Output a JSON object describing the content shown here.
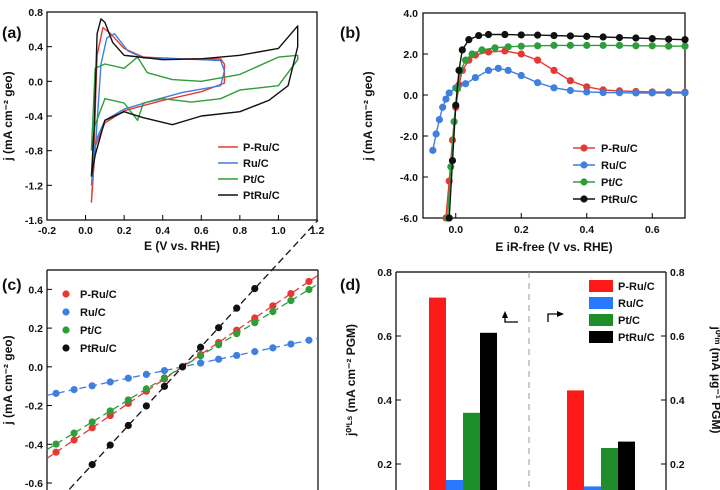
{
  "chart_data": [
    {
      "panel": "(a)",
      "type": "line",
      "xlabel": "E (V vs. RHE)",
      "ylabel": "j (mA cm⁻² geo)",
      "xlim": [
        -0.2,
        1.2
      ],
      "ylim": [
        -1.6,
        0.8
      ],
      "xticks": [
        "-0.2",
        "0.0",
        "0.2",
        "0.4",
        "0.6",
        "0.8",
        "1.0",
        "1.2"
      ],
      "yticks": [
        "-1.6",
        "-1.2",
        "-0.8",
        "-0.4",
        "0.0",
        "0.4",
        "0.8"
      ],
      "legend_position": "lower-right",
      "series": [
        {
          "name": "P-Ru/C",
          "color": "#e53935",
          "points": [
            [
              0.03,
              -1.4
            ],
            [
              0.04,
              -1.0
            ],
            [
              0.06,
              0.3
            ],
            [
              0.09,
              0.62
            ],
            [
              0.13,
              0.55
            ],
            [
              0.2,
              0.38
            ],
            [
              0.3,
              0.28
            ],
            [
              0.5,
              0.26
            ],
            [
              0.7,
              0.26
            ],
            [
              0.72,
              0.2
            ],
            [
              0.72,
              -0.02
            ],
            [
              0.6,
              -0.12
            ],
            [
              0.4,
              -0.22
            ],
            [
              0.3,
              -0.28
            ],
            [
              0.2,
              -0.34
            ],
            [
              0.1,
              -0.48
            ],
            [
              0.05,
              -0.75
            ],
            [
              0.03,
              -1.4
            ]
          ]
        },
        {
          "name": "Ru/C",
          "color": "#3f7fe0",
          "points": [
            [
              0.03,
              -1.2
            ],
            [
              0.05,
              -0.8
            ],
            [
              0.08,
              0.2
            ],
            [
              0.11,
              0.5
            ],
            [
              0.15,
              0.55
            ],
            [
              0.22,
              0.35
            ],
            [
              0.3,
              0.27
            ],
            [
              0.5,
              0.26
            ],
            [
              0.7,
              0.24
            ],
            [
              0.72,
              0.12
            ],
            [
              0.7,
              -0.05
            ],
            [
              0.5,
              -0.13
            ],
            [
              0.35,
              -0.22
            ],
            [
              0.2,
              -0.32
            ],
            [
              0.1,
              -0.45
            ],
            [
              0.05,
              -0.7
            ],
            [
              0.03,
              -1.2
            ]
          ]
        },
        {
          "name": "Pt/C",
          "color": "#2e9e3a",
          "points": [
            [
              0.03,
              -0.8
            ],
            [
              0.05,
              0.15
            ],
            [
              0.1,
              0.2
            ],
            [
              0.2,
              0.15
            ],
            [
              0.27,
              0.28
            ],
            [
              0.32,
              0.1
            ],
            [
              0.45,
              0.02
            ],
            [
              0.6,
              0.0
            ],
            [
              0.8,
              0.08
            ],
            [
              1.0,
              0.28
            ],
            [
              1.1,
              0.3
            ],
            [
              1.1,
              0.25
            ],
            [
              1.0,
              -0.05
            ],
            [
              0.8,
              -0.1
            ],
            [
              0.7,
              -0.2
            ],
            [
              0.55,
              -0.24
            ],
            [
              0.4,
              -0.2
            ],
            [
              0.3,
              -0.25
            ],
            [
              0.27,
              -0.45
            ],
            [
              0.2,
              -0.25
            ],
            [
              0.1,
              -0.2
            ],
            [
              0.05,
              -0.5
            ],
            [
              0.03,
              -0.8
            ]
          ]
        },
        {
          "name": "PtRu/C",
          "color": "#111111",
          "points": [
            [
              0.03,
              -1.1
            ],
            [
              0.045,
              -0.5
            ],
            [
              0.06,
              0.55
            ],
            [
              0.08,
              0.72
            ],
            [
              0.1,
              0.68
            ],
            [
              0.14,
              0.45
            ],
            [
              0.2,
              0.3
            ],
            [
              0.4,
              0.25
            ],
            [
              0.6,
              0.26
            ],
            [
              0.8,
              0.3
            ],
            [
              1.0,
              0.38
            ],
            [
              1.1,
              0.64
            ],
            [
              1.1,
              0.4
            ],
            [
              1.05,
              -0.05
            ],
            [
              0.95,
              -0.22
            ],
            [
              0.8,
              -0.35
            ],
            [
              0.6,
              -0.4
            ],
            [
              0.45,
              -0.5
            ],
            [
              0.3,
              -0.42
            ],
            [
              0.2,
              -0.35
            ],
            [
              0.1,
              -0.45
            ],
            [
              0.05,
              -0.85
            ],
            [
              0.03,
              -1.1
            ]
          ]
        }
      ]
    },
    {
      "panel": "(b)",
      "type": "line",
      "xlabel": "E iR-free (V vs. RHE)",
      "ylabel": "j (mA cm⁻² geo)",
      "xlim": [
        -0.1,
        0.7
      ],
      "ylim": [
        -6.0,
        4.0
      ],
      "xticks": [
        "0.0",
        "0.2",
        "0.4",
        "0.6"
      ],
      "yticks": [
        "-6.0",
        "-4.0",
        "-2.0",
        "0.0",
        "2.0",
        "4.0"
      ],
      "legend_position": "lower-right",
      "series": [
        {
          "name": "P-Ru/C",
          "color": "#e53935",
          "points": [
            [
              -0.03,
              -6.0
            ],
            [
              -0.02,
              -4.2
            ],
            [
              -0.01,
              -2.2
            ],
            [
              0.0,
              -0.6
            ],
            [
              0.01,
              0.5
            ],
            [
              0.02,
              1.2
            ],
            [
              0.04,
              1.7
            ],
            [
              0.06,
              1.95
            ],
            [
              0.1,
              2.1
            ],
            [
              0.15,
              2.15
            ],
            [
              0.2,
              2.0
            ],
            [
              0.25,
              1.7
            ],
            [
              0.3,
              1.2
            ],
            [
              0.35,
              0.7
            ],
            [
              0.4,
              0.4
            ],
            [
              0.45,
              0.25
            ],
            [
              0.5,
              0.2
            ],
            [
              0.55,
              0.17
            ],
            [
              0.6,
              0.15
            ],
            [
              0.65,
              0.14
            ],
            [
              0.7,
              0.14
            ]
          ]
        },
        {
          "name": "Ru/C",
          "color": "#3f7fe0",
          "points": [
            [
              -0.07,
              -2.7
            ],
            [
              -0.06,
              -1.9
            ],
            [
              -0.05,
              -1.2
            ],
            [
              -0.04,
              -0.6
            ],
            [
              -0.03,
              -0.2
            ],
            [
              -0.02,
              0.1
            ],
            [
              0.0,
              0.35
            ],
            [
              0.03,
              0.55
            ],
            [
              0.06,
              0.85
            ],
            [
              0.1,
              1.2
            ],
            [
              0.13,
              1.3
            ],
            [
              0.16,
              1.2
            ],
            [
              0.2,
              0.95
            ],
            [
              0.25,
              0.6
            ],
            [
              0.3,
              0.35
            ],
            [
              0.35,
              0.22
            ],
            [
              0.4,
              0.15
            ],
            [
              0.45,
              0.12
            ],
            [
              0.5,
              0.11
            ],
            [
              0.55,
              0.1
            ],
            [
              0.6,
              0.1
            ],
            [
              0.65,
              0.1
            ],
            [
              0.7,
              0.1
            ]
          ]
        },
        {
          "name": "Pt/C",
          "color": "#2e9e3a",
          "points": [
            [
              -0.025,
              -6.0
            ],
            [
              -0.015,
              -3.5
            ],
            [
              -0.005,
              -1.3
            ],
            [
              0.005,
              0.3
            ],
            [
              0.015,
              1.2
            ],
            [
              0.03,
              1.7
            ],
            [
              0.05,
              2.0
            ],
            [
              0.08,
              2.2
            ],
            [
              0.12,
              2.3
            ],
            [
              0.16,
              2.35
            ],
            [
              0.2,
              2.38
            ],
            [
              0.25,
              2.4
            ],
            [
              0.3,
              2.42
            ],
            [
              0.35,
              2.42
            ],
            [
              0.4,
              2.42
            ],
            [
              0.45,
              2.42
            ],
            [
              0.5,
              2.42
            ],
            [
              0.55,
              2.4
            ],
            [
              0.6,
              2.4
            ],
            [
              0.65,
              2.38
            ],
            [
              0.7,
              2.38
            ]
          ]
        },
        {
          "name": "PtRu/C",
          "color": "#111111",
          "points": [
            [
              -0.02,
              -6.0
            ],
            [
              -0.01,
              -3.2
            ],
            [
              0.0,
              -0.5
            ],
            [
              0.01,
              1.2
            ],
            [
              0.02,
              2.2
            ],
            [
              0.04,
              2.7
            ],
            [
              0.07,
              2.9
            ],
            [
              0.1,
              2.95
            ],
            [
              0.15,
              2.95
            ],
            [
              0.2,
              2.93
            ],
            [
              0.25,
              2.92
            ],
            [
              0.3,
              2.9
            ],
            [
              0.35,
              2.88
            ],
            [
              0.4,
              2.86
            ],
            [
              0.45,
              2.83
            ],
            [
              0.5,
              2.8
            ],
            [
              0.55,
              2.78
            ],
            [
              0.6,
              2.75
            ],
            [
              0.65,
              2.72
            ],
            [
              0.7,
              2.7
            ]
          ]
        }
      ]
    },
    {
      "panel": "(c)",
      "type": "scatter",
      "xlabel": "",
      "ylabel": "j (mA cm⁻² geo)",
      "xlim": [
        -15,
        15
      ],
      "ylim": [
        -0.6,
        0.5
      ],
      "yticks": [
        "-0.6",
        "-0.4",
        "-0.2",
        "0.0",
        "0.2",
        "0.4"
      ],
      "legend_position": "top-left",
      "series": [
        {
          "name": "P-Ru/C",
          "color": "#e53935",
          "slope": 0.0315,
          "x": [
            -14,
            -12,
            -10,
            -8,
            -6,
            -4,
            -2,
            0,
            2,
            4,
            6,
            8,
            10,
            12,
            14
          ]
        },
        {
          "name": "Ru/C",
          "color": "#3f7fe0",
          "slope": 0.0098,
          "x": [
            -14,
            -12,
            -10,
            -8,
            -6,
            -4,
            -2,
            0,
            2,
            4,
            6,
            8,
            10,
            12,
            14
          ]
        },
        {
          "name": "Pt/C",
          "color": "#2e9e3a",
          "slope": 0.0285,
          "x": [
            -14,
            -12,
            -10,
            -8,
            -6,
            -4,
            -2,
            0,
            2,
            4,
            6,
            8,
            10,
            12,
            14
          ]
        },
        {
          "name": "PtRu/C",
          "color": "#111111",
          "slope": 0.0505,
          "x": [
            -10,
            -8,
            -6,
            -4,
            -2,
            0,
            2,
            4,
            6,
            8,
            10
          ]
        }
      ]
    },
    {
      "panel": "(d)",
      "type": "bar",
      "ylabel_left": "j⁰ʹᴸˢ (mA cm⁻² PGM)",
      "ylabel_right": "j⁰ʹᵐ (mA μg⁻¹ PGM)",
      "ylim": [
        0.0,
        0.8
      ],
      "yticks": [
        "0.2",
        "0.4",
        "0.6",
        "0.8"
      ],
      "legend_position": "top-right",
      "series": [
        {
          "name": "P-Ru/C",
          "color": "#ff1a1a",
          "values": [
            0.72,
            0.43
          ]
        },
        {
          "name": "Ru/C",
          "color": "#2979ff",
          "values": [
            0.15,
            0.13
          ]
        },
        {
          "name": "Pt/C",
          "color": "#1e8e2a",
          "values": [
            0.36,
            0.25
          ]
        },
        {
          "name": "PtRu/C",
          "color": "#000000",
          "values": [
            0.61,
            0.27
          ]
        }
      ]
    }
  ]
}
